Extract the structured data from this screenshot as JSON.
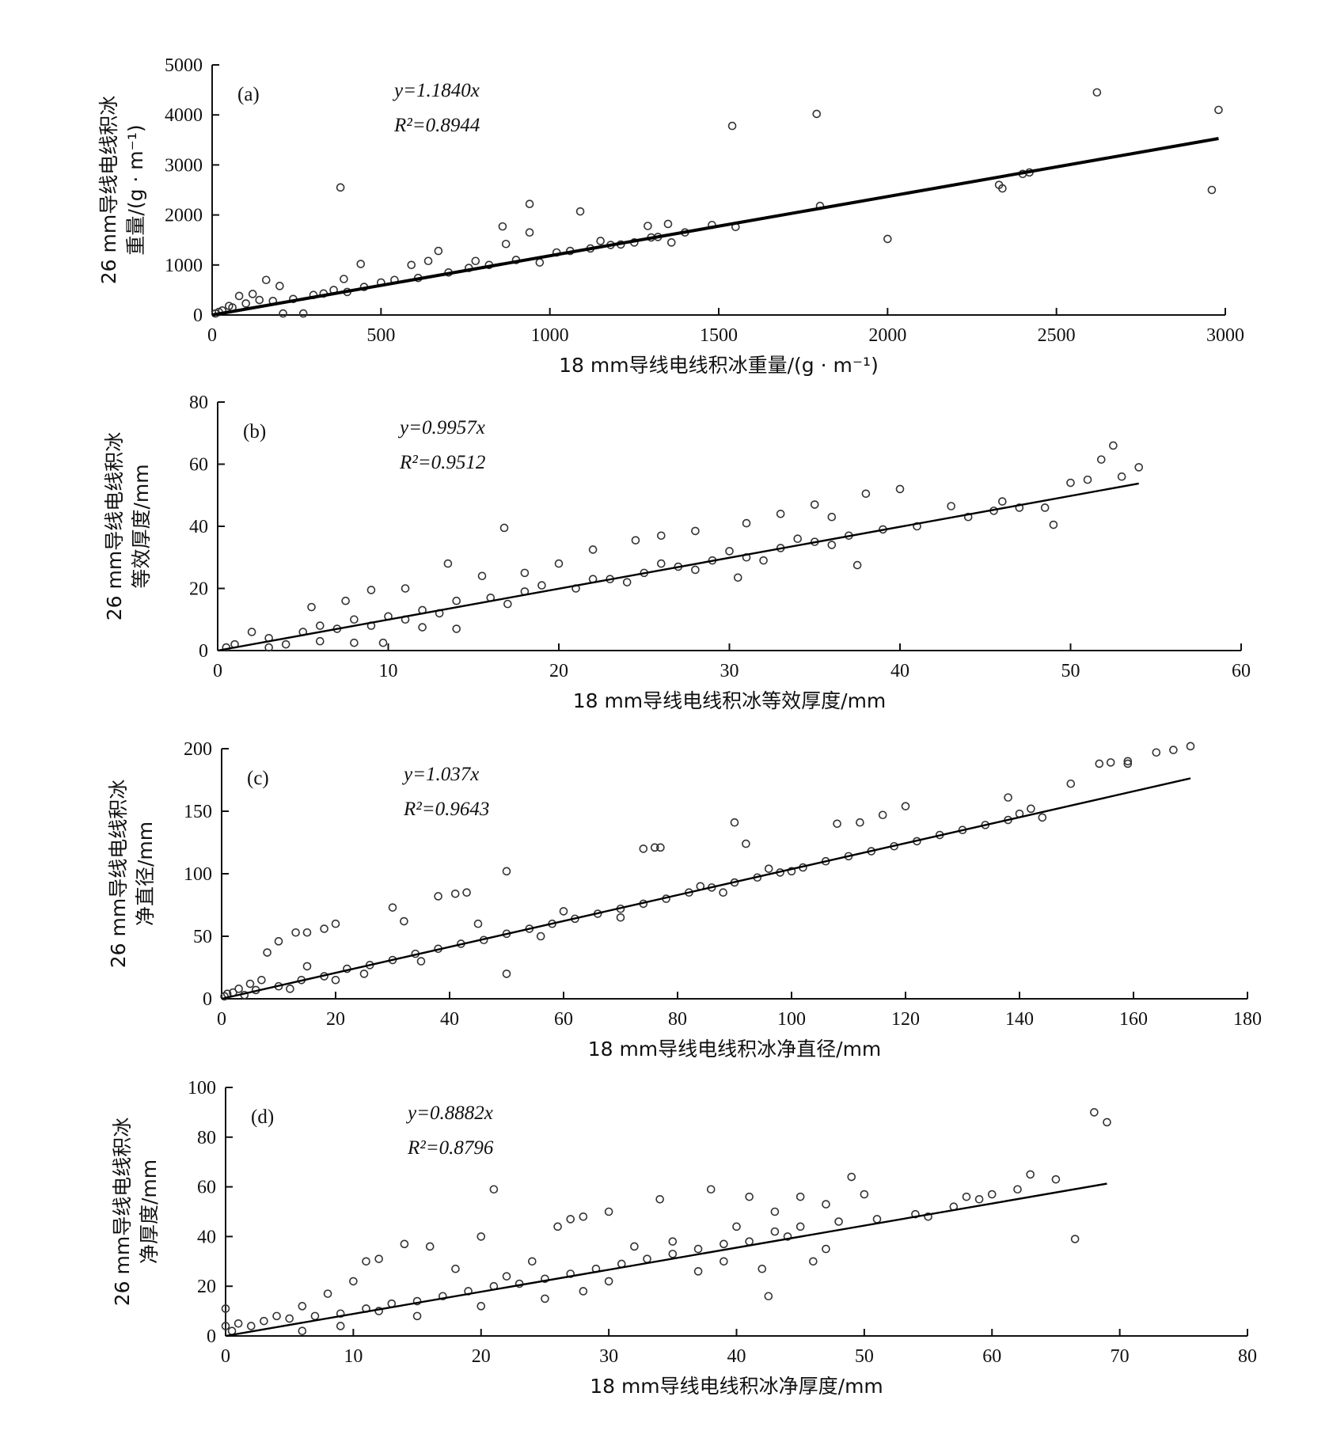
{
  "chart_data": [
    {
      "type": "scatter",
      "panel_label": "(a)",
      "equation": "y=1.1840x",
      "r2": "R²=0.8944",
      "slope": 1.184,
      "xlabel": "18 mm导线电线积冰重量/(g · m⁻¹)",
      "ylabel_line1": "26 mm导线电线积冰",
      "ylabel_line2": "重量/(g · m⁻¹)",
      "xlim": [
        0,
        3000
      ],
      "ylim": [
        0,
        5000
      ],
      "xticks": [
        0,
        500,
        1000,
        1500,
        2000,
        2500,
        3000
      ],
      "yticks": [
        0,
        1000,
        2000,
        3000,
        4000,
        5000
      ],
      "fit_x_max": 2980,
      "points": [
        [
          1540,
          3780
        ],
        [
          1790,
          4020
        ],
        [
          2620,
          4450
        ],
        [
          2980,
          4100
        ],
        [
          2960,
          2500
        ],
        [
          2000,
          1520
        ],
        [
          380,
          2550
        ],
        [
          940,
          2220
        ],
        [
          1090,
          2070
        ],
        [
          2330,
          2600
        ],
        [
          2340,
          2530
        ],
        [
          2400,
          2820
        ],
        [
          2420,
          2850
        ],
        [
          1800,
          2180
        ],
        [
          860,
          1770
        ],
        [
          940,
          1650
        ],
        [
          870,
          1420
        ],
        [
          1290,
          1780
        ],
        [
          1350,
          1820
        ],
        [
          1480,
          1800
        ],
        [
          1360,
          1450
        ],
        [
          1550,
          1760
        ],
        [
          1150,
          1480
        ],
        [
          1210,
          1410
        ],
        [
          210,
          30
        ],
        [
          270,
          30
        ],
        [
          300,
          400
        ],
        [
          440,
          1020
        ],
        [
          670,
          1280
        ],
        [
          590,
          1000
        ],
        [
          640,
          1080
        ],
        [
          780,
          1080
        ],
        [
          970,
          1050
        ],
        [
          1020,
          1250
        ],
        [
          1250,
          1450
        ],
        [
          1300,
          1550
        ],
        [
          160,
          700
        ],
        [
          200,
          580
        ],
        [
          80,
          380
        ],
        [
          120,
          420
        ],
        [
          50,
          180
        ],
        [
          30,
          90
        ],
        [
          10,
          30
        ],
        [
          20,
          60
        ],
        [
          60,
          150
        ],
        [
          100,
          230
        ],
        [
          140,
          300
        ],
        [
          180,
          280
        ],
        [
          240,
          320
        ],
        [
          330,
          430
        ],
        [
          360,
          500
        ],
        [
          400,
          460
        ],
        [
          450,
          560
        ],
        [
          500,
          650
        ],
        [
          540,
          700
        ],
        [
          610,
          740
        ],
        [
          700,
          850
        ],
        [
          760,
          940
        ],
        [
          820,
          1000
        ],
        [
          900,
          1100
        ],
        [
          1060,
          1280
        ],
        [
          1120,
          1330
        ],
        [
          1180,
          1400
        ],
        [
          1320,
          1560
        ],
        [
          1400,
          1650
        ],
        [
          390,
          720
        ]
      ]
    },
    {
      "type": "scatter",
      "panel_label": "(b)",
      "equation": "y=0.9957x",
      "r2": "R²=0.9512",
      "slope": 0.9957,
      "xlabel": "18 mm导线电线积冰等效厚度/mm",
      "ylabel_line1": "26 mm导线电线积冰",
      "ylabel_line2": "等效厚度/mm",
      "xlim": [
        0,
        60
      ],
      "ylim": [
        0,
        80
      ],
      "xticks": [
        0,
        10,
        20,
        30,
        40,
        50,
        60
      ],
      "yticks": [
        0,
        20,
        40,
        60,
        80
      ],
      "fit_x_max": 54,
      "points": [
        [
          52.5,
          66
        ],
        [
          51.8,
          61.5
        ],
        [
          54,
          59
        ],
        [
          40,
          52
        ],
        [
          38,
          50.5
        ],
        [
          49,
          40.5
        ],
        [
          37.5,
          27.5
        ],
        [
          30.5,
          23.5
        ],
        [
          16.8,
          39.5
        ],
        [
          9.7,
          2.5
        ],
        [
          43,
          46.5
        ],
        [
          45.5,
          45
        ],
        [
          46,
          48
        ],
        [
          48.5,
          46
        ],
        [
          50,
          54
        ],
        [
          51,
          55
        ],
        [
          53,
          56
        ],
        [
          35,
          47
        ],
        [
          36,
          43
        ],
        [
          33,
          44
        ],
        [
          31,
          41
        ],
        [
          28,
          38.5
        ],
        [
          26,
          37
        ],
        [
          24.5,
          35.5
        ],
        [
          22,
          32.5
        ],
        [
          20,
          28
        ],
        [
          18,
          25
        ],
        [
          15.5,
          24
        ],
        [
          13.5,
          28
        ],
        [
          11,
          20
        ],
        [
          9,
          19.5
        ],
        [
          7.5,
          16
        ],
        [
          5.5,
          14
        ],
        [
          14,
          7
        ],
        [
          12,
          7.5
        ],
        [
          8,
          2.5
        ],
        [
          4,
          2
        ],
        [
          2,
          6
        ],
        [
          1,
          2
        ],
        [
          0.5,
          1
        ],
        [
          3,
          1
        ],
        [
          6,
          3
        ],
        [
          6,
          8
        ],
        [
          8,
          10
        ],
        [
          10,
          11
        ],
        [
          12,
          13
        ],
        [
          14,
          16
        ],
        [
          16,
          17
        ],
        [
          18,
          19
        ],
        [
          21,
          20
        ],
        [
          23,
          23
        ],
        [
          25,
          25
        ],
        [
          27,
          27
        ],
        [
          29,
          29
        ],
        [
          31,
          30
        ],
        [
          33,
          33
        ],
        [
          35,
          35
        ],
        [
          37,
          37
        ],
        [
          39,
          39
        ],
        [
          41,
          40
        ],
        [
          44,
          43
        ],
        [
          47,
          46
        ],
        [
          3,
          4
        ],
        [
          5,
          6
        ],
        [
          7,
          7
        ],
        [
          9,
          8
        ],
        [
          11,
          10
        ],
        [
          13,
          12
        ],
        [
          17,
          15
        ],
        [
          19,
          21
        ],
        [
          22,
          23
        ],
        [
          24,
          22
        ],
        [
          26,
          28
        ],
        [
          28,
          26
        ],
        [
          30,
          32
        ],
        [
          32,
          29
        ],
        [
          34,
          36
        ],
        [
          36,
          34
        ]
      ]
    },
    {
      "type": "scatter",
      "panel_label": "(c)",
      "equation": "y=1.037x",
      "r2": "R²=0.9643",
      "slope": 1.037,
      "xlabel": "18 mm导线电线积冰净直径/mm",
      "ylabel_line1": "26 mm导线电线积冰",
      "ylabel_line2": "净直径/mm",
      "xlim": [
        0,
        180
      ],
      "ylim": [
        0,
        200
      ],
      "xticks": [
        0,
        20,
        40,
        60,
        80,
        100,
        120,
        140,
        160,
        180
      ],
      "yticks": [
        0,
        50,
        100,
        150,
        200
      ],
      "fit_x_max": 170,
      "points": [
        [
          170,
          202
        ],
        [
          167,
          199
        ],
        [
          164,
          197
        ],
        [
          159,
          190
        ],
        [
          159,
          188
        ],
        [
          156,
          189
        ],
        [
          154,
          188
        ],
        [
          149,
          172
        ],
        [
          144,
          145
        ],
        [
          138,
          161
        ],
        [
          142,
          152
        ],
        [
          120,
          154
        ],
        [
          116,
          147
        ],
        [
          112,
          141
        ],
        [
          108,
          140
        ],
        [
          90,
          141
        ],
        [
          92,
          124
        ],
        [
          50,
          102
        ],
        [
          50,
          20
        ],
        [
          74,
          120
        ],
        [
          76,
          121
        ],
        [
          77,
          121
        ],
        [
          43,
          85
        ],
        [
          41,
          84
        ],
        [
          38,
          82
        ],
        [
          30,
          73
        ],
        [
          32,
          62
        ],
        [
          20,
          60
        ],
        [
          18,
          56
        ],
        [
          15,
          53
        ],
        [
          13,
          53
        ],
        [
          10,
          46
        ],
        [
          8,
          37
        ],
        [
          15,
          26
        ],
        [
          7,
          15
        ],
        [
          5,
          12
        ],
        [
          3,
          8
        ],
        [
          1,
          4
        ],
        [
          0.5,
          2
        ],
        [
          2,
          5
        ],
        [
          4,
          3
        ],
        [
          6,
          7
        ],
        [
          10,
          10
        ],
        [
          14,
          15
        ],
        [
          18,
          18
        ],
        [
          22,
          24
        ],
        [
          26,
          27
        ],
        [
          30,
          31
        ],
        [
          34,
          36
        ],
        [
          38,
          40
        ],
        [
          42,
          44
        ],
        [
          46,
          47
        ],
        [
          50,
          52
        ],
        [
          54,
          56
        ],
        [
          58,
          60
        ],
        [
          62,
          64
        ],
        [
          66,
          68
        ],
        [
          70,
          72
        ],
        [
          74,
          76
        ],
        [
          78,
          80
        ],
        [
          82,
          85
        ],
        [
          86,
          89
        ],
        [
          90,
          93
        ],
        [
          94,
          97
        ],
        [
          98,
          101
        ],
        [
          102,
          105
        ],
        [
          106,
          110
        ],
        [
          110,
          114
        ],
        [
          114,
          118
        ],
        [
          118,
          122
        ],
        [
          122,
          126
        ],
        [
          126,
          131
        ],
        [
          130,
          135
        ],
        [
          134,
          139
        ],
        [
          138,
          143
        ],
        [
          140,
          148
        ],
        [
          96,
          104
        ],
        [
          100,
          102
        ],
        [
          88,
          85
        ],
        [
          84,
          90
        ],
        [
          70,
          65
        ],
        [
          60,
          70
        ],
        [
          56,
          50
        ],
        [
          45,
          60
        ],
        [
          35,
          30
        ],
        [
          25,
          20
        ],
        [
          20,
          15
        ],
        [
          12,
          8
        ]
      ]
    },
    {
      "type": "scatter",
      "panel_label": "(d)",
      "equation": "y=0.8882x",
      "r2": "R²=0.8796",
      "slope": 0.8882,
      "xlabel": "18 mm导线电线积冰净厚度/mm",
      "ylabel_line1": "26 mm导线电线积冰",
      "ylabel_line2": "净厚度/mm",
      "xlim": [
        0,
        80
      ],
      "ylim": [
        0,
        100
      ],
      "xticks": [
        0,
        10,
        20,
        30,
        40,
        50,
        60,
        70,
        80
      ],
      "yticks": [
        0,
        20,
        40,
        60,
        80,
        100
      ],
      "fit_x_max": 69,
      "points": [
        [
          68,
          90
        ],
        [
          69,
          86
        ],
        [
          66.5,
          39
        ],
        [
          42.5,
          16
        ],
        [
          21,
          59
        ],
        [
          30,
          50
        ],
        [
          34,
          55
        ],
        [
          38,
          59
        ],
        [
          41,
          56
        ],
        [
          45,
          56
        ],
        [
          49,
          64
        ],
        [
          47,
          53
        ],
        [
          50,
          57
        ],
        [
          44,
          40
        ],
        [
          42,
          27
        ],
        [
          46,
          30
        ],
        [
          47,
          35
        ],
        [
          20,
          40
        ],
        [
          26,
          44
        ],
        [
          27,
          47
        ],
        [
          28,
          48
        ],
        [
          16,
          36
        ],
        [
          14,
          37
        ],
        [
          12,
          31
        ],
        [
          11,
          30
        ],
        [
          10,
          22
        ],
        [
          8,
          17
        ],
        [
          6,
          12
        ],
        [
          4,
          8
        ],
        [
          2,
          4
        ],
        [
          0.5,
          2
        ],
        [
          0,
          4
        ],
        [
          0,
          11
        ],
        [
          1,
          5
        ],
        [
          3,
          6
        ],
        [
          5,
          7
        ],
        [
          7,
          8
        ],
        [
          9,
          9
        ],
        [
          11,
          11
        ],
        [
          13,
          13
        ],
        [
          15,
          14
        ],
        [
          17,
          16
        ],
        [
          19,
          18
        ],
        [
          21,
          20
        ],
        [
          23,
          21
        ],
        [
          25,
          23
        ],
        [
          27,
          25
        ],
        [
          29,
          27
        ],
        [
          31,
          29
        ],
        [
          33,
          31
        ],
        [
          35,
          33
        ],
        [
          37,
          35
        ],
        [
          39,
          37
        ],
        [
          41,
          38
        ],
        [
          43,
          42
        ],
        [
          45,
          44
        ],
        [
          48,
          46
        ],
        [
          51,
          47
        ],
        [
          54,
          49
        ],
        [
          57,
          52
        ],
        [
          59,
          55
        ],
        [
          60,
          57
        ],
        [
          62,
          59
        ],
        [
          63,
          65
        ],
        [
          65,
          63
        ],
        [
          55,
          48
        ],
        [
          58,
          56
        ],
        [
          40,
          44
        ],
        [
          35,
          38
        ],
        [
          30,
          22
        ],
        [
          25,
          15
        ],
        [
          20,
          12
        ],
        [
          18,
          27
        ],
        [
          15,
          8
        ],
        [
          12,
          10
        ],
        [
          9,
          4
        ],
        [
          6,
          2
        ],
        [
          32,
          36
        ],
        [
          37,
          26
        ],
        [
          24,
          30
        ],
        [
          28,
          18
        ],
        [
          22,
          24
        ],
        [
          39,
          30
        ],
        [
          43,
          50
        ]
      ]
    }
  ]
}
